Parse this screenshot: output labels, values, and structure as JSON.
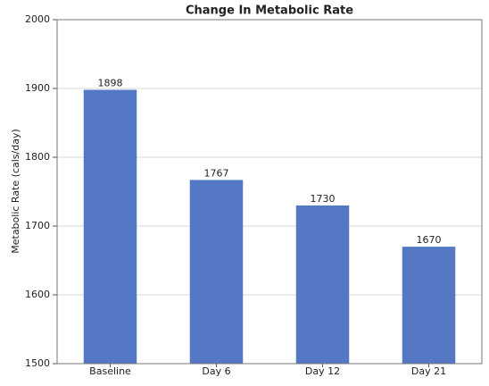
{
  "chart_data": {
    "type": "bar",
    "title": "Change In Metabolic Rate",
    "y_label": "Metabolic Rate (cals/day)",
    "categories": [
      "Baseline",
      "Day 6",
      "Day 12",
      "Day 21"
    ],
    "values": [
      1898,
      1767,
      1730,
      1670
    ],
    "color": "#5478c4",
    "ylim": [
      1500,
      2000
    ],
    "yticks": [
      1500,
      1600,
      1700,
      1800,
      1900,
      2000
    ],
    "grid": true
  }
}
